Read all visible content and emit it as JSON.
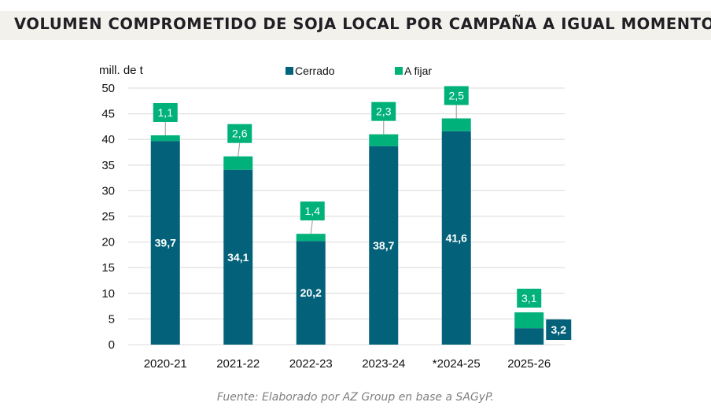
{
  "title": "VOLUMEN COMPROMETIDO DE SOJA LOCAL POR CAMPAÑA A IGUAL MOMENTO",
  "source": "Fuente: Elaborado por AZ Group en base a SAGyP.",
  "colors": {
    "cerrado": "#03627a",
    "a_fijar": "#00b27a",
    "title_band": "#f3f1ec",
    "grid": "#e2e2e2"
  },
  "chart_data": {
    "type": "bar",
    "stacked": true,
    "title": "VOLUMEN COMPROMETIDO DE SOJA LOCAL POR CAMPAÑA A IGUAL MOMENTO",
    "ylabel": "mill. de t",
    "xlabel": "",
    "ylim": [
      0,
      50
    ],
    "yticks": [
      0,
      5,
      10,
      15,
      20,
      25,
      30,
      35,
      40,
      45,
      50
    ],
    "grid": true,
    "legend_position": "top",
    "categories": [
      "2020-21",
      "2021-22",
      "2022-23",
      "2023-24",
      "*2024-25",
      "2025-26"
    ],
    "series": [
      {
        "name": "Cerrado",
        "color": "#03627a",
        "values": [
          39.7,
          34.1,
          20.2,
          38.7,
          41.6,
          3.2
        ],
        "labels": [
          "39,7",
          "34,1",
          "20,2",
          "38,7",
          "41,6",
          "3,2"
        ]
      },
      {
        "name": "A fijar",
        "color": "#00b27a",
        "values": [
          1.1,
          2.6,
          1.4,
          2.3,
          2.5,
          3.1
        ],
        "labels": [
          "1,1",
          "2,6",
          "1,4",
          "2,3",
          "2,5",
          "3,1"
        ]
      }
    ]
  }
}
